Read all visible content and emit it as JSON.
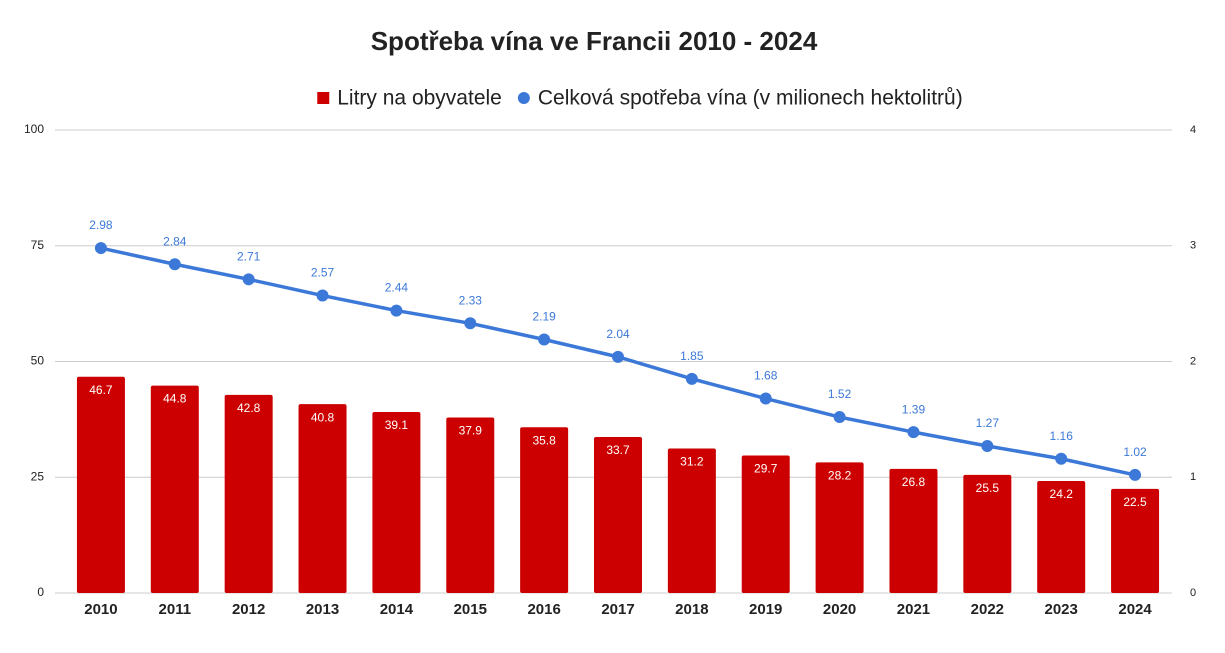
{
  "chart_data": {
    "type": "combo",
    "title": "Spotřeba vína ve Francii 2010 - 2024",
    "categories": [
      "2010",
      "2011",
      "2012",
      "2013",
      "2014",
      "2015",
      "2016",
      "2017",
      "2018",
      "2019",
      "2020",
      "2021",
      "2022",
      "2023",
      "2024"
    ],
    "series": [
      {
        "name": "Litry na obyvatele",
        "type": "bar",
        "color": "#cc0000",
        "axis": "y",
        "values": [
          46.7,
          44.8,
          42.8,
          40.8,
          39.1,
          37.9,
          35.8,
          33.7,
          31.2,
          29.7,
          28.2,
          26.8,
          25.5,
          24.2,
          22.5
        ]
      },
      {
        "name": "Celková spotřeba vína (v milionech hektolitrů)",
        "type": "line",
        "color": "#3c78d8",
        "axis": "y2",
        "values": [
          2.98,
          2.84,
          2.71,
          2.57,
          2.44,
          2.33,
          2.19,
          2.04,
          1.85,
          1.68,
          1.52,
          1.39,
          1.27,
          1.16,
          1.02
        ]
      }
    ],
    "ylim": [
      0,
      100
    ],
    "yticks": [
      0,
      25,
      50,
      75,
      100
    ],
    "y2lim": [
      0,
      4
    ],
    "y2ticks": [
      0,
      1,
      2,
      3,
      4
    ],
    "grid": true,
    "legend": "top"
  }
}
